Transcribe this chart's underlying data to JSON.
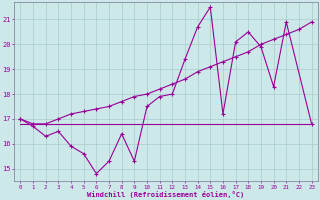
{
  "background_color": "#cce8e8",
  "grid_color": "#aacccc",
  "line_color": "#990099",
  "x_label": "Windchill (Refroidissement éolien,°C)",
  "ylabel_vals": [
    15,
    16,
    17,
    18,
    19,
    20,
    21
  ],
  "xlim": [
    -0.5,
    23.5
  ],
  "ylim": [
    14.5,
    21.7
  ],
  "series1_x": [
    0,
    1,
    2,
    3,
    4,
    5,
    6,
    7,
    8,
    9,
    10,
    11,
    12,
    13,
    14,
    15,
    16,
    17,
    18,
    19,
    20,
    21,
    23
  ],
  "series1_y": [
    17.0,
    16.7,
    16.3,
    16.5,
    15.9,
    15.6,
    14.8,
    15.3,
    16.4,
    15.3,
    17.5,
    17.9,
    18.0,
    19.4,
    20.7,
    21.5,
    17.2,
    20.1,
    20.5,
    19.9,
    18.3,
    20.9,
    16.8
  ],
  "series2_x": [
    0,
    1,
    2,
    3,
    4,
    5,
    6,
    7,
    8,
    9,
    10,
    11,
    12,
    13,
    14,
    15,
    16,
    17,
    18,
    19,
    20,
    21,
    22,
    23
  ],
  "series2_y": [
    17.0,
    16.8,
    16.8,
    17.0,
    17.2,
    17.3,
    17.4,
    17.5,
    17.7,
    17.9,
    18.0,
    18.2,
    18.4,
    18.6,
    18.9,
    19.1,
    19.3,
    19.5,
    19.7,
    20.0,
    20.2,
    20.4,
    20.6,
    20.9
  ],
  "series3_x": [
    0,
    10,
    16,
    23
  ],
  "series3_y": [
    16.8,
    16.8,
    16.8,
    16.8
  ],
  "xtick_labels": [
    "0",
    "1",
    "2",
    "3",
    "4",
    "5",
    "6",
    "7",
    "8",
    "9",
    "10",
    "11",
    "12",
    "13",
    "14",
    "15",
    "16",
    "17",
    "18",
    "19",
    "20",
    "21",
    "22",
    "23"
  ],
  "figsize": [
    3.2,
    2.0
  ],
  "dpi": 100
}
